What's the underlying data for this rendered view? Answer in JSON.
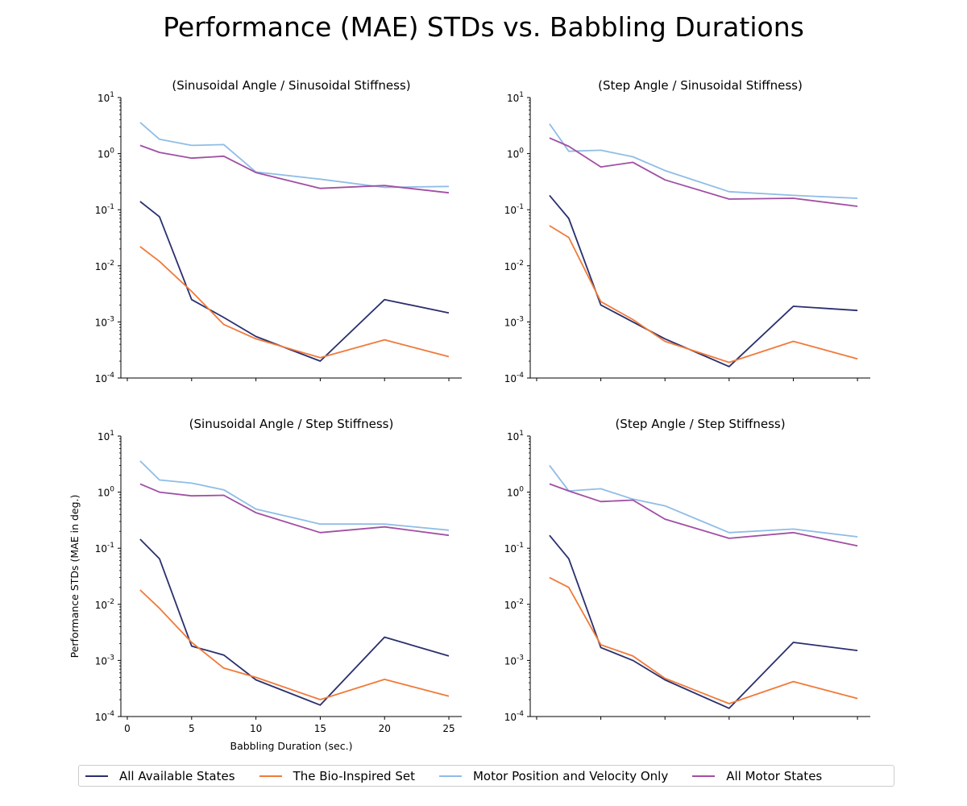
{
  "suptitle": "Performance (MAE) STDs vs. Babbling Durations",
  "colors": {
    "all_available_states": "#2a2f6e",
    "bio_inspired_set": "#f07a3a",
    "motor_pos_vel": "#8fbde6",
    "all_motor_states": "#a14fa3"
  },
  "legend": [
    {
      "label": "All Available States",
      "color": "#2a2f6e"
    },
    {
      "label": "The Bio-Inspired Set",
      "color": "#f07a3a"
    },
    {
      "label": "Motor Position and Velocity Only",
      "color": "#8fbde6"
    },
    {
      "label": "All Motor States",
      "color": "#a14fa3"
    }
  ],
  "chart_data": [
    {
      "type": "line",
      "title": "(Sinusoidal Angle / Sinusoidal Stiffness)",
      "xlabel": "",
      "ylabel": "",
      "yscale": "log",
      "ylim": [
        0.0001,
        10
      ],
      "xlim": [
        -0.5,
        26
      ],
      "xticks": [
        0,
        5,
        10,
        15,
        20,
        25
      ],
      "show_xticklabels": false,
      "x": [
        1,
        2.5,
        5,
        7.5,
        10,
        15,
        20,
        25
      ],
      "series": [
        {
          "name": "All Available States",
          "values": [
            0.14,
            0.075,
            0.0025,
            0.0012,
            0.00055,
            0.0002,
            0.0025,
            0.00145
          ]
        },
        {
          "name": "The Bio-Inspired Set",
          "values": [
            0.022,
            0.012,
            0.0035,
            0.0009,
            0.0005,
            0.00023,
            0.00048,
            0.00024
          ]
        },
        {
          "name": "Motor Position and Velocity Only",
          "values": [
            3.6,
            1.8,
            1.4,
            1.45,
            0.47,
            0.35,
            0.25,
            0.26
          ]
        },
        {
          "name": "All Motor States",
          "values": [
            1.4,
            1.05,
            0.83,
            0.9,
            0.46,
            0.24,
            0.27,
            0.2
          ]
        }
      ]
    },
    {
      "type": "line",
      "title": "(Step Angle / Sinusoidal Stiffness)",
      "xlabel": "",
      "ylabel": "",
      "yscale": "log",
      "ylim": [
        0.0001,
        10
      ],
      "xlim": [
        -0.5,
        26
      ],
      "xticks": [
        0,
        5,
        10,
        15,
        20,
        25
      ],
      "show_xticklabels": false,
      "x": [
        1,
        2.5,
        5,
        7.5,
        10,
        15,
        20,
        25
      ],
      "series": [
        {
          "name": "All Available States",
          "values": [
            0.18,
            0.07,
            0.002,
            0.001,
            0.0005,
            0.00016,
            0.0019,
            0.0016
          ]
        },
        {
          "name": "The Bio-Inspired Set",
          "values": [
            0.052,
            0.032,
            0.0023,
            0.0011,
            0.00045,
            0.00019,
            0.00045,
            0.00022
          ]
        },
        {
          "name": "Motor Position and Velocity Only",
          "values": [
            3.4,
            1.1,
            1.15,
            0.88,
            0.5,
            0.21,
            0.18,
            0.16
          ]
        },
        {
          "name": "All Motor States",
          "values": [
            1.9,
            1.35,
            0.58,
            0.7,
            0.34,
            0.155,
            0.16,
            0.115
          ]
        }
      ]
    },
    {
      "type": "line",
      "title": "(Sinusoidal Angle / Step Stiffness)",
      "xlabel": "Babbling Duration (sec.)",
      "ylabel": "Performance STDs (MAE in deg.)",
      "yscale": "log",
      "ylim": [
        0.0001,
        10
      ],
      "xlim": [
        -0.5,
        26
      ],
      "xticks": [
        0,
        5,
        10,
        15,
        20,
        25
      ],
      "show_xticklabels": true,
      "x": [
        1,
        2.5,
        5,
        7.5,
        10,
        15,
        20,
        25
      ],
      "series": [
        {
          "name": "All Available States",
          "values": [
            0.145,
            0.065,
            0.0018,
            0.00125,
            0.00045,
            0.00016,
            0.0026,
            0.0012
          ]
        },
        {
          "name": "The Bio-Inspired Set",
          "values": [
            0.018,
            0.0085,
            0.0021,
            0.00073,
            0.0005,
            0.0002,
            0.00046,
            0.00023
          ]
        },
        {
          "name": "Motor Position and Velocity Only",
          "values": [
            3.6,
            1.65,
            1.45,
            1.1,
            0.5,
            0.27,
            0.27,
            0.21
          ]
        },
        {
          "name": "All Motor States",
          "values": [
            1.4,
            1.0,
            0.86,
            0.88,
            0.43,
            0.19,
            0.24,
            0.17
          ]
        }
      ]
    },
    {
      "type": "line",
      "title": "(Step Angle / Step Stiffness)",
      "xlabel": "",
      "ylabel": "",
      "yscale": "log",
      "ylim": [
        0.0001,
        10
      ],
      "xlim": [
        -0.5,
        26
      ],
      "xticks": [
        0,
        5,
        10,
        15,
        20,
        25
      ],
      "show_xticklabels": false,
      "x": [
        1,
        2.5,
        5,
        7.5,
        10,
        15,
        20,
        25
      ],
      "series": [
        {
          "name": "All Available States",
          "values": [
            0.17,
            0.065,
            0.0017,
            0.001,
            0.00045,
            0.00014,
            0.0021,
            0.0015
          ]
        },
        {
          "name": "The Bio-Inspired Set",
          "values": [
            0.03,
            0.02,
            0.0019,
            0.0012,
            0.00048,
            0.00017,
            0.00042,
            0.00021
          ]
        },
        {
          "name": "Motor Position and Velocity Only",
          "values": [
            3.0,
            1.05,
            1.15,
            0.75,
            0.57,
            0.19,
            0.22,
            0.16
          ]
        },
        {
          "name": "All Motor States",
          "values": [
            1.4,
            1.05,
            0.68,
            0.72,
            0.33,
            0.15,
            0.19,
            0.11
          ]
        }
      ]
    }
  ]
}
